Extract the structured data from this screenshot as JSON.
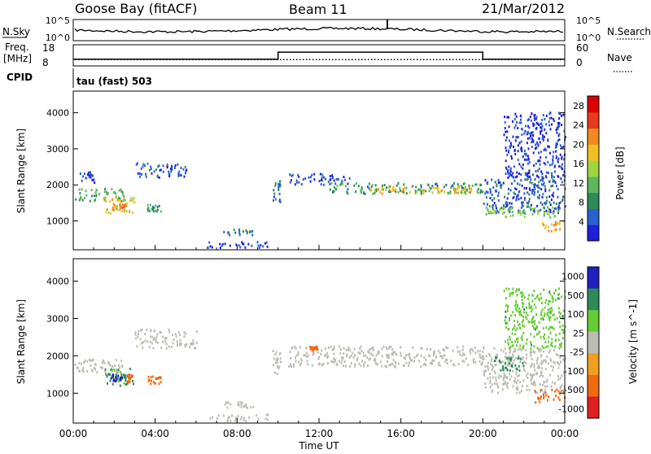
{
  "header": {
    "station": "Goose Bay (fitACF)",
    "beam": "Beam 11",
    "date": "21/Mar/2012"
  },
  "noise_panel": {
    "left_label": "N.Sky",
    "left_ticks": [
      "10^5",
      "10^0"
    ],
    "right_ticks": [
      "10^5",
      "10^0"
    ],
    "right_label": "N.Search"
  },
  "freq_panel": {
    "left_label_1": "Freq.",
    "left_label_2": "[MHz]",
    "left_ticks": [
      "18",
      "8"
    ],
    "right_ticks": [
      "60",
      "0"
    ],
    "right_label": "Nave",
    "freq_steps": [
      [
        0,
        10,
        11.2
      ],
      [
        10,
        20,
        14.5
      ],
      [
        20,
        24,
        11.2
      ]
    ],
    "nave_level": 18
  },
  "cpid_panel": {
    "label": "CPID",
    "mode": "tau (fast) 503"
  },
  "colors": {
    "power_scale": [
      "#1e1edc",
      "#2a5fd0",
      "#2e8b57",
      "#5cb85c",
      "#9fd640",
      "#f0c020",
      "#f08a1e",
      "#e83a1e",
      "#dc0000"
    ],
    "velocity_scale": [
      "#2020c0",
      "#2e8b57",
      "#66cc33",
      "#bcbcb4",
      "#f0a020",
      "#f06a10",
      "#e02020"
    ],
    "ground_scatter": "#bcbcb4"
  },
  "chart_data": [
    {
      "type": "heatmap",
      "name": "power",
      "ylabel": "Slant Range [km]",
      "xlabel": "Time UT",
      "xlim": [
        0,
        24
      ],
      "ylim": [
        200,
        4600
      ],
      "x_ticks": [
        "00:00",
        "04:00",
        "08:00",
        "12:00",
        "16:00",
        "20:00",
        "00:00"
      ],
      "y_ticks": [
        1000,
        2000,
        3000,
        4000
      ],
      "colorbar_label": "Power [dB]",
      "colorbar_ticks": [
        "4",
        "8",
        "12",
        "16",
        "20",
        "24",
        "28"
      ],
      "colorbar_range": [
        0,
        30
      ],
      "patches": [
        {
          "t": [
            0.0,
            2.5
          ],
          "r": [
            1550,
            1900
          ],
          "v": 10
        },
        {
          "t": [
            1.5,
            3.0
          ],
          "r": [
            1200,
            1650
          ],
          "v": 18
        },
        {
          "t": [
            1.8,
            2.6
          ],
          "r": [
            1300,
            1500
          ],
          "v": 22
        },
        {
          "t": [
            0.3,
            1.0
          ],
          "r": [
            2050,
            2350
          ],
          "v": 4
        },
        {
          "t": [
            3.0,
            5.5
          ],
          "r": [
            2200,
            2600
          ],
          "v": 5
        },
        {
          "t": [
            3.6,
            4.3
          ],
          "r": [
            1250,
            1450
          ],
          "v": 9
        },
        {
          "t": [
            7.3,
            8.8
          ],
          "r": [
            600,
            760
          ],
          "v": 8
        },
        {
          "t": [
            6.5,
            9.5
          ],
          "r": [
            250,
            420
          ],
          "v": 3
        },
        {
          "t": [
            9.7,
            10.1
          ],
          "r": [
            1500,
            2200
          ],
          "v": 6
        },
        {
          "t": [
            10.5,
            13.5
          ],
          "r": [
            2000,
            2300
          ],
          "v": 4
        },
        {
          "t": [
            12.5,
            20.0
          ],
          "r": [
            1750,
            2050
          ],
          "v": 9
        },
        {
          "t": [
            14.5,
            19.5
          ],
          "r": [
            1750,
            1950
          ],
          "v": 18
        },
        {
          "t": [
            20.0,
            24.0
          ],
          "r": [
            1200,
            2200
          ],
          "v": 5
        },
        {
          "t": [
            20.0,
            23.5
          ],
          "r": [
            1100,
            1400
          ],
          "v": 13
        },
        {
          "t": [
            22.8,
            24.0
          ],
          "r": [
            700,
            1000
          ],
          "v": 20
        },
        {
          "t": [
            21.0,
            24.0
          ],
          "r": [
            2200,
            4000
          ],
          "v": 3
        }
      ]
    },
    {
      "type": "heatmap",
      "name": "velocity",
      "ylabel": "Slant Range [km]",
      "xlabel": "Time UT",
      "xlim": [
        0,
        24
      ],
      "ylim": [
        200,
        4600
      ],
      "x_ticks": [
        "00:00",
        "04:00",
        "08:00",
        "12:00",
        "16:00",
        "20:00",
        "00:00"
      ],
      "y_ticks": [
        1000,
        2000,
        3000,
        4000
      ],
      "colorbar_label": "Velocity [m s^-1]",
      "colorbar_ticks": [
        "1000",
        "500",
        "100",
        "25",
        "-25",
        "-100",
        "-500",
        "-1000"
      ],
      "patches": [
        {
          "t": [
            0.0,
            2.5
          ],
          "r": [
            1550,
            1900
          ],
          "v": 0
        },
        {
          "t": [
            1.5,
            3.0
          ],
          "r": [
            1200,
            1650
          ],
          "v": 120
        },
        {
          "t": [
            1.8,
            2.4
          ],
          "r": [
            1300,
            1500
          ],
          "v": 600
        },
        {
          "t": [
            2.6,
            2.9
          ],
          "r": [
            1300,
            1500
          ],
          "v": -300
        },
        {
          "t": [
            3.0,
            6.0
          ],
          "r": [
            2200,
            2700
          ],
          "v": 0
        },
        {
          "t": [
            3.6,
            4.3
          ],
          "r": [
            1250,
            1450
          ],
          "v": -200
        },
        {
          "t": [
            7.3,
            8.8
          ],
          "r": [
            600,
            760
          ],
          "v": 0
        },
        {
          "t": [
            6.5,
            9.5
          ],
          "r": [
            250,
            420
          ],
          "v": 0
        },
        {
          "t": [
            9.7,
            10.1
          ],
          "r": [
            1500,
            2200
          ],
          "v": 0
        },
        {
          "t": [
            10.5,
            20.0
          ],
          "r": [
            1700,
            2250
          ],
          "v": 0
        },
        {
          "t": [
            11.5,
            11.9
          ],
          "r": [
            2100,
            2250
          ],
          "v": -400
        },
        {
          "t": [
            20.0,
            24.0
          ],
          "r": [
            1000,
            2200
          ],
          "v": 0
        },
        {
          "t": [
            20.5,
            22.0
          ],
          "r": [
            1600,
            2000
          ],
          "v": 300
        },
        {
          "t": [
            22.5,
            24.0
          ],
          "r": [
            750,
            1100
          ],
          "v": -150
        },
        {
          "t": [
            21.0,
            24.0
          ],
          "r": [
            2200,
            3800
          ],
          "v": 80
        }
      ]
    }
  ]
}
